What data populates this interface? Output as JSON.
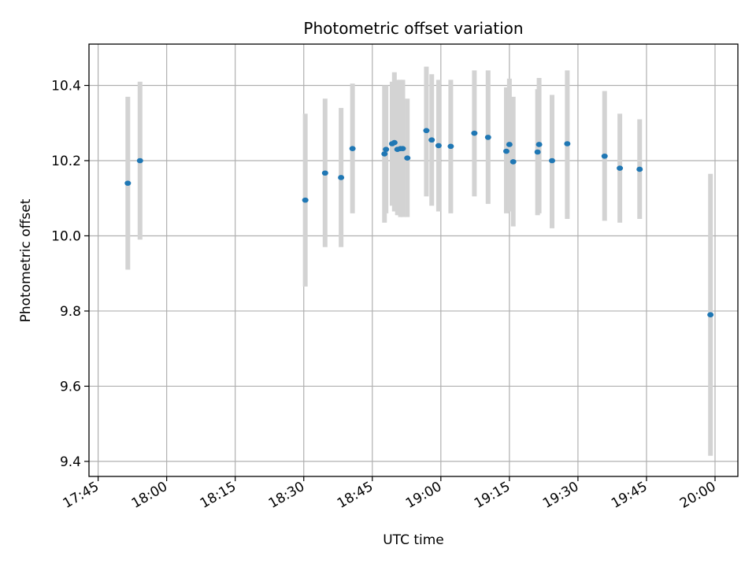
{
  "chart_data": {
    "type": "scatter",
    "title": "Photometric offset variation",
    "xlabel": "UTC time",
    "ylabel": "Photometric offset",
    "x_axis": "time",
    "xlim": [
      "17:43",
      "20:05"
    ],
    "ylim": [
      9.36,
      10.51
    ],
    "x_ticks": [
      "17:45",
      "18:00",
      "18:15",
      "18:30",
      "18:45",
      "19:00",
      "19:15",
      "19:30",
      "19:45",
      "20:00"
    ],
    "y_ticks": [
      "9.4",
      "9.6",
      "9.8",
      "10.0",
      "10.2",
      "10.4"
    ],
    "grid": true,
    "colors": {
      "marker": "#1f77b4",
      "errorbar": "#d3d3d3",
      "grid": "#b0b0b0"
    },
    "points": [
      {
        "x": "17:51:30",
        "y": 10.14,
        "ylow": 9.91,
        "yhigh": 10.37
      },
      {
        "x": "17:54:10",
        "y": 10.2,
        "ylow": 9.99,
        "yhigh": 10.41
      },
      {
        "x": "18:30:20",
        "y": 10.095,
        "ylow": 9.865,
        "yhigh": 10.325
      },
      {
        "x": "18:34:40",
        "y": 10.167,
        "ylow": 9.97,
        "yhigh": 10.365
      },
      {
        "x": "18:38:10",
        "y": 10.155,
        "ylow": 9.97,
        "yhigh": 10.34
      },
      {
        "x": "18:40:40",
        "y": 10.232,
        "ylow": 10.06,
        "yhigh": 10.405
      },
      {
        "x": "18:47:40",
        "y": 10.218,
        "ylow": 10.035,
        "yhigh": 10.4
      },
      {
        "x": "18:48:00",
        "y": 10.23,
        "ylow": 10.06,
        "yhigh": 10.4
      },
      {
        "x": "18:49:20",
        "y": 10.245,
        "ylow": 10.08,
        "yhigh": 10.41
      },
      {
        "x": "18:49:50",
        "y": 10.248,
        "ylow": 10.065,
        "yhigh": 10.435
      },
      {
        "x": "18:50:30",
        "y": 10.23,
        "ylow": 10.055,
        "yhigh": 10.415
      },
      {
        "x": "18:51:10",
        "y": 10.232,
        "ylow": 10.05,
        "yhigh": 10.415
      },
      {
        "x": "18:51:40",
        "y": 10.232,
        "ylow": 10.05,
        "yhigh": 10.415
      },
      {
        "x": "18:52:40",
        "y": 10.207,
        "ylow": 10.05,
        "yhigh": 10.365
      },
      {
        "x": "18:56:50",
        "y": 10.28,
        "ylow": 10.105,
        "yhigh": 10.45
      },
      {
        "x": "18:58:00",
        "y": 10.255,
        "ylow": 10.08,
        "yhigh": 10.43
      },
      {
        "x": "18:59:30",
        "y": 10.24,
        "ylow": 10.065,
        "yhigh": 10.415
      },
      {
        "x": "19:02:10",
        "y": 10.238,
        "ylow": 10.06,
        "yhigh": 10.415
      },
      {
        "x": "19:07:20",
        "y": 10.273,
        "ylow": 10.105,
        "yhigh": 10.44
      },
      {
        "x": "19:10:20",
        "y": 10.262,
        "ylow": 10.085,
        "yhigh": 10.44
      },
      {
        "x": "19:14:20",
        "y": 10.225,
        "ylow": 10.06,
        "yhigh": 10.395
      },
      {
        "x": "19:15:00",
        "y": 10.243,
        "ylow": 10.065,
        "yhigh": 10.418
      },
      {
        "x": "19:15:50",
        "y": 10.197,
        "ylow": 10.025,
        "yhigh": 10.37
      },
      {
        "x": "19:21:10",
        "y": 10.223,
        "ylow": 10.055,
        "yhigh": 10.39
      },
      {
        "x": "19:21:30",
        "y": 10.243,
        "ylow": 10.06,
        "yhigh": 10.42
      },
      {
        "x": "19:24:20",
        "y": 10.2,
        "ylow": 10.02,
        "yhigh": 10.375
      },
      {
        "x": "19:27:40",
        "y": 10.245,
        "ylow": 10.045,
        "yhigh": 10.44
      },
      {
        "x": "19:35:50",
        "y": 10.212,
        "ylow": 10.04,
        "yhigh": 10.385
      },
      {
        "x": "19:39:10",
        "y": 10.18,
        "ylow": 10.035,
        "yhigh": 10.325
      },
      {
        "x": "19:43:30",
        "y": 10.177,
        "ylow": 10.045,
        "yhigh": 10.31
      },
      {
        "x": "19:59:00",
        "y": 9.79,
        "ylow": 9.415,
        "yhigh": 10.165
      }
    ]
  }
}
